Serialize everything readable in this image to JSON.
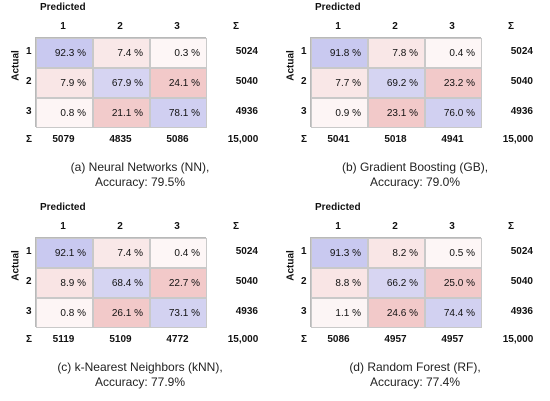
{
  "labels": {
    "predicted": "Predicted",
    "actual": "Actual",
    "sigma": "Σ",
    "classes": [
      "1",
      "2",
      "3"
    ]
  },
  "colors": {
    "diagonal": "#c9c9f0",
    "offdiagonal": "#f2c9c9",
    "low": "#fdf7f7"
  },
  "chart_data": [
    {
      "type": "heatmap",
      "title": "(a) Neural Networks (NN),",
      "subtitle": "Accuracy: 79.5%",
      "xlabel": "Predicted",
      "ylabel": "Actual",
      "row_labels": [
        "1",
        "2",
        "3"
      ],
      "col_labels": [
        "1",
        "2",
        "3"
      ],
      "values": [
        [
          92.3,
          7.4,
          0.3
        ],
        [
          7.9,
          67.9,
          24.1
        ],
        [
          0.8,
          21.1,
          78.1
        ]
      ],
      "cells": [
        [
          "92.3 %",
          "7.4 %",
          "0.3 %"
        ],
        [
          "7.9 %",
          "67.9 %",
          "24.1 %"
        ],
        [
          "0.8 %",
          "21.1 %",
          "78.1 %"
        ]
      ],
      "row_sums": [
        "5024",
        "5040",
        "4936"
      ],
      "col_sums": [
        "5079",
        "4835",
        "5086"
      ],
      "total": "15,000"
    },
    {
      "type": "heatmap",
      "title": "(b) Gradient Boosting (GB),",
      "subtitle": "Accuracy: 79.0%",
      "xlabel": "Predicted",
      "ylabel": "Actual",
      "row_labels": [
        "1",
        "2",
        "3"
      ],
      "col_labels": [
        "1",
        "2",
        "3"
      ],
      "values": [
        [
          91.8,
          7.8,
          0.4
        ],
        [
          7.7,
          69.2,
          23.2
        ],
        [
          0.9,
          23.1,
          76.0
        ]
      ],
      "cells": [
        [
          "91.8 %",
          "7.8 %",
          "0.4 %"
        ],
        [
          "7.7 %",
          "69.2 %",
          "23.2 %"
        ],
        [
          "0.9 %",
          "23.1 %",
          "76.0 %"
        ]
      ],
      "row_sums": [
        "5024",
        "5040",
        "4936"
      ],
      "col_sums": [
        "5041",
        "5018",
        "4941"
      ],
      "total": "15,000"
    },
    {
      "type": "heatmap",
      "title": "(c) k-Nearest Neighbors (kNN),",
      "subtitle": "Accuracy: 77.9%",
      "xlabel": "Predicted",
      "ylabel": "Actual",
      "row_labels": [
        "1",
        "2",
        "3"
      ],
      "col_labels": [
        "1",
        "2",
        "3"
      ],
      "values": [
        [
          92.1,
          7.4,
          0.4
        ],
        [
          8.9,
          68.4,
          22.7
        ],
        [
          0.8,
          26.1,
          73.1
        ]
      ],
      "cells": [
        [
          "92.1 %",
          "7.4 %",
          "0.4 %"
        ],
        [
          "8.9 %",
          "68.4 %",
          "22.7 %"
        ],
        [
          "0.8 %",
          "26.1 %",
          "73.1 %"
        ]
      ],
      "row_sums": [
        "5024",
        "5040",
        "4936"
      ],
      "col_sums": [
        "5119",
        "5109",
        "4772"
      ],
      "total": "15,000"
    },
    {
      "type": "heatmap",
      "title": "(d) Random Forest (RF),",
      "subtitle": "Accuracy: 77.4%",
      "xlabel": "Predicted",
      "ylabel": "Actual",
      "row_labels": [
        "1",
        "2",
        "3"
      ],
      "col_labels": [
        "1",
        "2",
        "3"
      ],
      "values": [
        [
          91.3,
          8.2,
          0.5
        ],
        [
          8.8,
          66.2,
          25.0
        ],
        [
          1.1,
          24.6,
          74.4
        ]
      ],
      "cells": [
        [
          "91.3 %",
          "8.2 %",
          "0.5 %"
        ],
        [
          "8.8 %",
          "66.2 %",
          "25.0 %"
        ],
        [
          "1.1 %",
          "24.6 %",
          "74.4 %"
        ]
      ],
      "row_sums": [
        "5024",
        "5040",
        "4936"
      ],
      "col_sums": [
        "5086",
        "4957",
        "4957"
      ],
      "total": "15,000"
    }
  ]
}
